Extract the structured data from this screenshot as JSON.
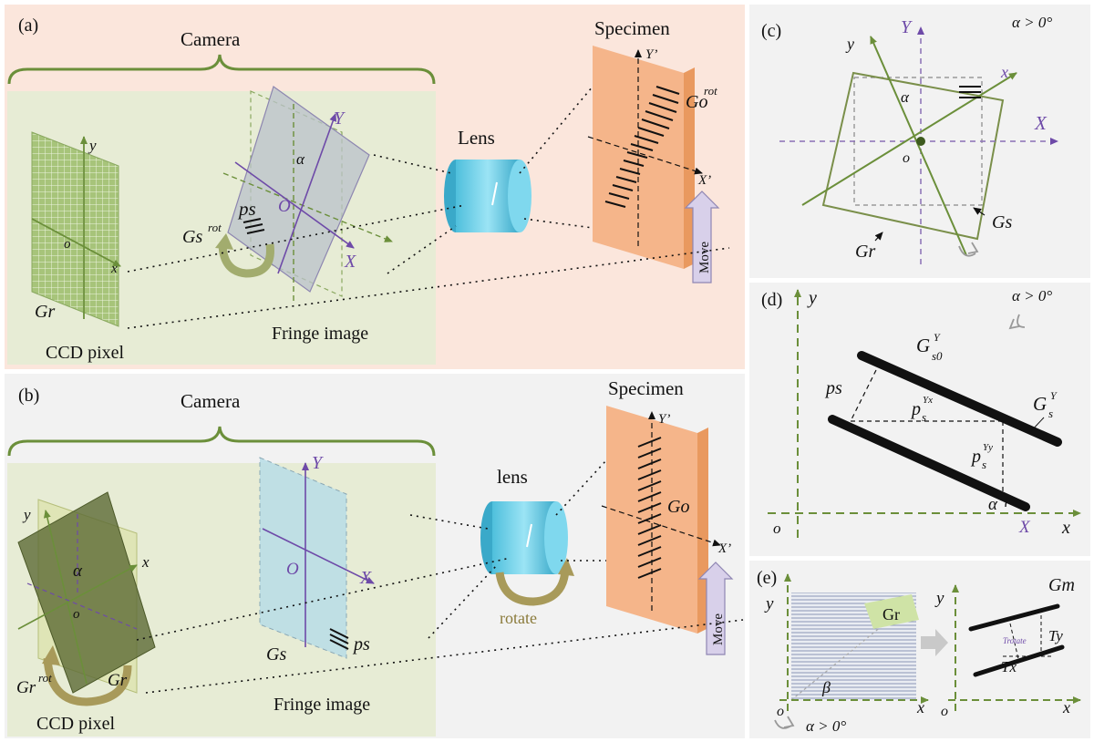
{
  "colors": {
    "panel_a_bg": "#fbe6dc",
    "panel_b_bg": "#f2f2f2",
    "panel_right_bg": "#f2f2f2",
    "camera_box": "#e7ecd5",
    "green_axis": "#6b8f3a",
    "purple_axis": "#6e4aa8",
    "specimen": "#f5b58a",
    "lens": "#6fd0ea",
    "move_arrow": "#d8d0ea",
    "rotate_arrow": "#a89a5a",
    "ccd_grid": "#a7c47a"
  },
  "panel_a": {
    "tag": "(a)",
    "camera": "Camera",
    "specimen": "Specimen",
    "lens": "Lens",
    "fringe_image": "Fringe image",
    "ccd_pixel": "CCD pixel",
    "move": "Move",
    "g_o_rot": "Go",
    "g_o_rot_sup": "rot",
    "g_s_rot": "Gs",
    "g_s_rot_sup": "rot",
    "p_s": "ps",
    "g_r": "Gr",
    "y_prime": "Y’",
    "x_prime": "X’",
    "axis_y": "y",
    "axis_x": "x",
    "axis_o": "o",
    "axis_Y": "Y",
    "axis_X": "X",
    "axis_O": "O",
    "alpha": "α"
  },
  "panel_b": {
    "tag": "(b)",
    "camera": "Camera",
    "specimen": "Specimen",
    "lens": "lens",
    "fringe_image": "Fringe image",
    "ccd_pixel": "CCD pixel",
    "move": "Move",
    "rotate": "rotate",
    "g_o": "Go",
    "g_s": "Gs",
    "g_r": "Gr",
    "g_r_rot": "Gr",
    "g_r_rot_sup": "rot",
    "p_s": "ps",
    "y_prime": "Y’",
    "x_prime": "X’",
    "axis_y": "y",
    "axis_x": "x",
    "axis_o": "o",
    "axis_Y": "Y",
    "axis_X": "X",
    "axis_O": "O",
    "alpha": "α"
  },
  "panel_c": {
    "tag": "(c)",
    "condition": "α > 0°",
    "axis_Y": "Y",
    "axis_X": "X",
    "axis_y": "y",
    "axis_x": "x",
    "axis_o": "o",
    "alpha": "α",
    "g_s": "Gs",
    "g_r": "Gr"
  },
  "panel_d": {
    "tag": "(d)",
    "condition": "α > 0°",
    "axis_y": "y",
    "axis_x": "x",
    "axis_o": "o",
    "axis_X": "X",
    "g_s0": "G",
    "g_s0_sub": "s0",
    "g_s0_sup": "Y",
    "g_s": "G",
    "g_s_sub": "s",
    "g_s_sup": "Y",
    "p_s": "ps",
    "p_s_yx": "p",
    "p_s_yx_sub": "s",
    "p_s_yx_sup": "Yx",
    "p_s_yy": "p",
    "p_s_yy_sub": "s",
    "p_s_yy_sup": "Yy",
    "alpha": "α"
  },
  "panel_e": {
    "tag": "(e)",
    "condition": "α > 0°",
    "gr": "Gr",
    "beta": "β",
    "g_m": "Gm",
    "t_y": "Ty",
    "t_x": "Tx",
    "t_rotate": "Trotate",
    "axis_y": "y",
    "axis_x": "x",
    "axis_o": "o"
  }
}
